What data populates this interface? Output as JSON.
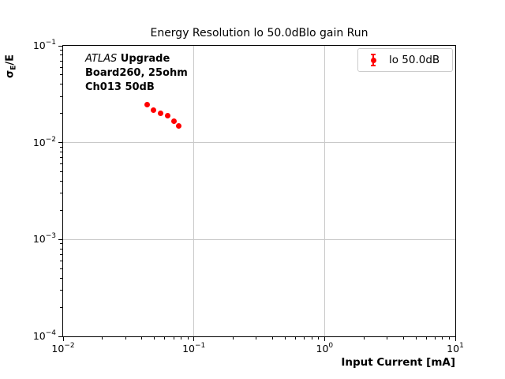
{
  "figure": {
    "background": "#ffffff"
  },
  "chart_data": {
    "type": "scatter",
    "title": "Energy Resolution lo 50.0dBlo gain Run",
    "xlabel": "Input Current [mA]",
    "ylabel": "σ_E/E",
    "x_scale": "log",
    "y_scale": "log",
    "xlim": [
      0.01,
      10
    ],
    "ylim": [
      0.0001,
      0.1
    ],
    "grid": true,
    "legend_position": "upper right",
    "x_ticks": [
      {
        "base": "10",
        "exp": "−2"
      },
      {
        "base": "10",
        "exp": "−1"
      },
      {
        "base": "10",
        "exp": "0"
      },
      {
        "base": "10",
        "exp": "1"
      }
    ],
    "y_ticks": [
      {
        "base": "10",
        "exp": "−1"
      },
      {
        "base": "10",
        "exp": "−2"
      },
      {
        "base": "10",
        "exp": "−3"
      },
      {
        "base": "10",
        "exp": "−4"
      }
    ],
    "series": [
      {
        "name": "lo 50.0dB",
        "color": "#ff0000",
        "marker": "circle-with-errorbar",
        "x": [
          0.044,
          0.049,
          0.056,
          0.063,
          0.07,
          0.077
        ],
        "y": [
          0.0248,
          0.0217,
          0.0202,
          0.0191,
          0.0167,
          0.0149
        ]
      }
    ]
  },
  "ylabel_parts": {
    "sigma": "σ",
    "subscript": "E",
    "suffix": "/E"
  },
  "annotation": {
    "line1_italic": "ATLAS",
    "line1_bold": " Upgrade",
    "line2": "Board260, 25ohm",
    "line3": "Ch013 50dB"
  },
  "legend": {
    "entries": [
      {
        "label": "lo 50.0dB",
        "color": "#ff0000"
      }
    ]
  }
}
